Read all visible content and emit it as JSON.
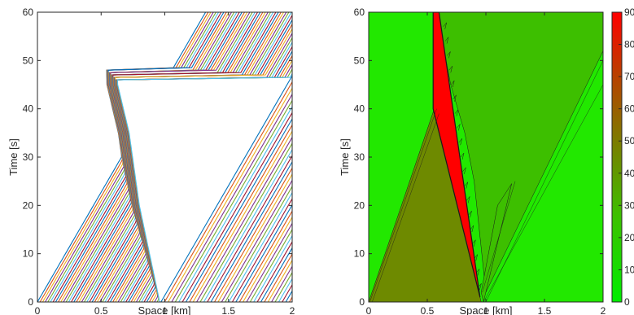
{
  "chart_data": [
    {
      "type": "line",
      "description_visible": "vehicle trajectories",
      "xlabel": "Space [km]",
      "ylabel": "Time [s]",
      "xlim": [
        0,
        2
      ],
      "ylim": [
        0,
        60
      ],
      "xticks": [
        0,
        0.5,
        1,
        1.5,
        2
      ],
      "xtick_labels": [
        "0",
        "0.5",
        "1",
        "1.5",
        "2"
      ],
      "yticks": [
        0,
        10,
        20,
        30,
        40,
        50,
        60
      ],
      "ytick_labels": [
        "0",
        "10",
        "20",
        "30",
        "40",
        "50",
        "60"
      ],
      "grid": false,
      "series_count": 48,
      "start_space_range_km": [
        0,
        0.96
      ],
      "free_flow_speed_km_per_s": 0.022,
      "queue_front_path": [
        [
          0.96,
          0
        ],
        [
          0.8,
          20
        ],
        [
          0.72,
          35
        ],
        [
          0.63,
          45
        ],
        [
          0.62,
          60
        ]
      ],
      "palette": [
        "#0072bd",
        "#d95319",
        "#edb120",
        "#7e2f8e",
        "#77ac30",
        "#4dbeee",
        "#a2142f"
      ]
    },
    {
      "type": "heatmap",
      "description_visible": "density contour",
      "xlabel": "Space [km]",
      "ylabel": "Time [s]",
      "xlim": [
        0,
        2
      ],
      "ylim": [
        0,
        60
      ],
      "xticks": [
        0,
        0.5,
        1,
        1.5,
        2
      ],
      "xtick_labels": [
        "0",
        "0.5",
        "1",
        "1.5",
        "2"
      ],
      "yticks": [
        0,
        10,
        20,
        30,
        40,
        50,
        60
      ],
      "ytick_labels": [
        "0",
        "10",
        "20",
        "30",
        "40",
        "50",
        "60"
      ],
      "colorbar": {
        "min": 0,
        "max": 90,
        "ticks": [
          0,
          10,
          20,
          30,
          40,
          50,
          60,
          70,
          80,
          90
        ],
        "tick_labels": [
          "0",
          "10",
          "20",
          "30",
          "40",
          "50",
          "60",
          "70",
          "80",
          "90"
        ],
        "low_color": "#00ee00",
        "high_color": "#ff0000"
      },
      "regions": [
        {
          "level": 5,
          "color": "#22e800",
          "polygon": [
            [
              0,
              0
            ],
            [
              2,
              0
            ],
            [
              2,
              60
            ],
            [
              0,
              60
            ]
          ]
        },
        {
          "level": 25,
          "color": "#3dbf00",
          "polygon": [
            [
              0.58,
              60
            ],
            [
              2,
              60
            ],
            [
              2,
              52
            ],
            [
              1.0,
              2
            ],
            [
              0.9,
              25
            ],
            [
              0.82,
              35
            ],
            [
              0.7,
              45
            ]
          ]
        },
        {
          "level": 25,
          "color": "#3dbf00",
          "polygon": [
            [
              0.98,
              0
            ],
            [
              1.22,
              24.5
            ],
            [
              1.1,
              20
            ],
            [
              0.96,
              2
            ]
          ]
        },
        {
          "level": 45,
          "color": "#6e8a00",
          "polygon": [
            [
              0,
              0
            ],
            [
              0.96,
              0
            ],
            [
              0.56,
              40
            ]
          ]
        },
        {
          "level": 90,
          "color": "#ff0000",
          "polygon": [
            [
              0.55,
              60
            ],
            [
              0.6,
              60
            ],
            [
              0.95,
              1
            ],
            [
              0.55,
              40
            ]
          ]
        }
      ]
    }
  ]
}
